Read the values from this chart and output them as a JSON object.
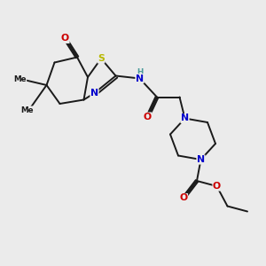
{
  "bg_color": "#ebebeb",
  "bond_color": "#1a1a1a",
  "bond_width": 1.4,
  "atom_colors": {
    "S": "#b8b800",
    "N": "#0000cc",
    "O": "#cc0000",
    "H": "#4a9a9a",
    "C": "#1a1a1a"
  },
  "fs": 6.8
}
